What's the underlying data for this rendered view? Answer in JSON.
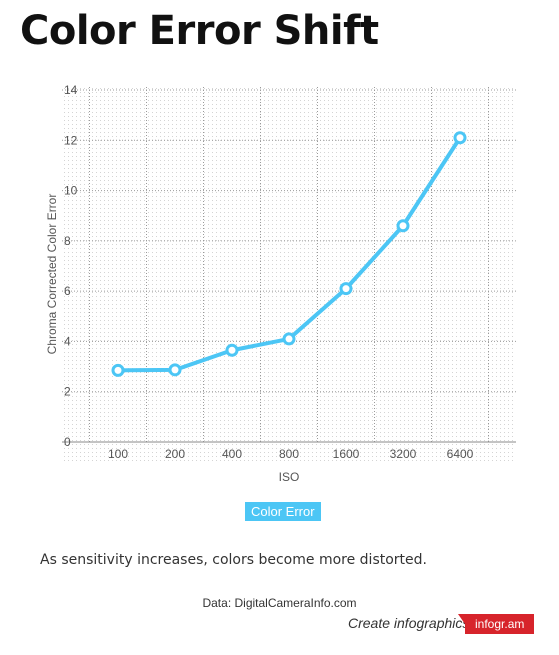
{
  "title": "Color Error Shift",
  "chart_data": {
    "type": "line",
    "categories": [
      "100",
      "200",
      "400",
      "800",
      "1600",
      "3200",
      "6400"
    ],
    "series": [
      {
        "name": "Color Error",
        "values": [
          2.85,
          2.87,
          3.65,
          4.1,
          6.1,
          8.6,
          12.1
        ]
      }
    ],
    "xlabel": "ISO",
    "ylabel": "Chroma Corrected Color Error",
    "ylim": [
      0,
      14
    ],
    "yticks": [
      0,
      2,
      4,
      6,
      8,
      10,
      12,
      14
    ],
    "grid": true,
    "legend": "bottom",
    "color": "#4cc6f5"
  },
  "description": "As sensitivity increases, colors become more distorted.",
  "source": "Data: DigitalCameraInfo.com",
  "footer": {
    "create_label": "Create infographics",
    "brand": "infogr.am"
  }
}
